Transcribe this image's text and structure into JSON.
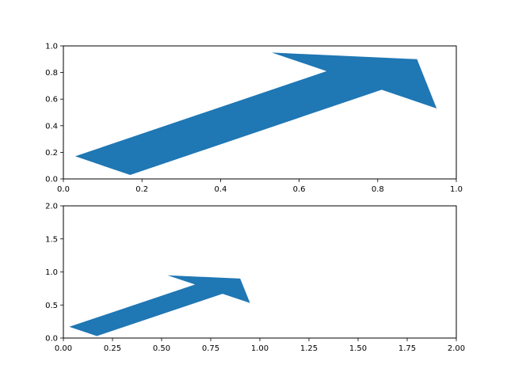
{
  "chart_data": [
    {
      "type": "arrow",
      "color": "#1f77b4",
      "xlim": [
        0,
        1
      ],
      "ylim": [
        0,
        1
      ],
      "xticks": [
        0,
        0.2,
        0.4,
        0.6,
        0.8,
        1.0
      ],
      "yticks": [
        0,
        0.2,
        0.4,
        0.6,
        0.8,
        1.0
      ],
      "xtick_labels": [
        "0.0",
        "0.2",
        "0.4",
        "0.6",
        "0.8",
        "1.0"
      ],
      "ytick_labels": [
        "0.0",
        "0.2",
        "0.4",
        "0.6",
        "0.8",
        "1.0"
      ],
      "polygon": [
        [
          0.03,
          0.17
        ],
        [
          0.67,
          0.81
        ],
        [
          0.53,
          0.95
        ],
        [
          0.9,
          0.9
        ],
        [
          0.95,
          0.53
        ],
        [
          0.81,
          0.67
        ],
        [
          0.17,
          0.03
        ]
      ]
    },
    {
      "type": "arrow",
      "color": "#1f77b4",
      "xlim": [
        0,
        2
      ],
      "ylim": [
        0,
        2
      ],
      "xticks": [
        0,
        0.25,
        0.5,
        0.75,
        1.0,
        1.25,
        1.5,
        1.75,
        2.0
      ],
      "yticks": [
        0,
        0.5,
        1.0,
        1.5,
        2.0
      ],
      "xtick_labels": [
        "0.00",
        "0.25",
        "0.50",
        "0.75",
        "1.00",
        "1.25",
        "1.50",
        "1.75",
        "2.00"
      ],
      "ytick_labels": [
        "0.0",
        "0.5",
        "1.0",
        "1.5",
        "2.0"
      ],
      "polygon": [
        [
          0.03,
          0.17
        ],
        [
          0.67,
          0.81
        ],
        [
          0.53,
          0.95
        ],
        [
          0.9,
          0.9
        ],
        [
          0.95,
          0.53
        ],
        [
          0.81,
          0.67
        ],
        [
          0.17,
          0.03
        ]
      ]
    }
  ]
}
